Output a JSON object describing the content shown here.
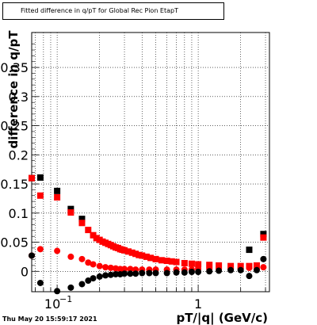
{
  "title": "Fitted difference in q/pT for Global Rec Pion EtapT",
  "xlabel": "pT/|q| (GeV/c)",
  "ylabel": "difference in q/pT",
  "footer_timestamp": "Thu May 20 15:59:17 2021",
  "chart_data": {
    "type": "scatter",
    "title": "Fitted difference in q/pT for Global Rec Pion EtapT",
    "xlabel": "pT/|q| (GeV/c)",
    "ylabel": "difference in q/pT",
    "xscale": "log",
    "xlim": [
      0.066,
      3.2
    ],
    "ylim": [
      -0.035,
      0.41
    ],
    "y_ticks": [
      0,
      0.05,
      0.1,
      0.15,
      0.2,
      0.25,
      0.3,
      0.35
    ],
    "y_tick_labels": [
      "0",
      "0.05",
      "0.1",
      "0.15",
      "0.2",
      "0.25",
      "0.3",
      "0.35"
    ],
    "x_tick_labels": [
      {
        "value": 0.1,
        "label": "10",
        "sup": "−1"
      },
      {
        "value": 1,
        "label": "1",
        "sup": ""
      }
    ],
    "grid": true,
    "series": [
      {
        "marker": "square",
        "color": "#000000",
        "x": [
          0.066,
          0.076,
          0.1,
          0.125,
          0.15,
          2.3,
          2.9
        ],
        "y": [
          0.16,
          0.161,
          0.138,
          0.107,
          0.09,
          0.037,
          0.064
        ]
      },
      {
        "marker": "square",
        "color": "#ff0000",
        "x": [
          0.066,
          0.076,
          0.1,
          0.125,
          0.15,
          0.166,
          0.18,
          0.19,
          0.2,
          0.21,
          0.22,
          0.23,
          0.24,
          0.25,
          0.26,
          0.27,
          0.28,
          0.29,
          0.3,
          0.32,
          0.34,
          0.36,
          0.38,
          0.4,
          0.43,
          0.46,
          0.5,
          0.55,
          0.6,
          0.65,
          0.7,
          0.8,
          0.9,
          1.0,
          1.2,
          1.4,
          1.7,
          2.0,
          2.3,
          2.6,
          2.9
        ],
        "y": [
          0.16,
          0.13,
          0.127,
          0.101,
          0.083,
          0.071,
          0.062,
          0.057,
          0.054,
          0.051,
          0.049,
          0.047,
          0.045,
          0.043,
          0.041,
          0.04,
          0.038,
          0.037,
          0.036,
          0.034,
          0.032,
          0.03,
          0.028,
          0.027,
          0.025,
          0.023,
          0.021,
          0.019,
          0.018,
          0.017,
          0.016,
          0.014,
          0.013,
          0.012,
          0.011,
          0.01,
          0.009,
          0.009,
          0.009,
          0.01,
          0.058
        ]
      },
      {
        "marker": "circle",
        "color": "#ff0000",
        "x": [
          0.066,
          0.076,
          0.1,
          0.125,
          0.15,
          0.166,
          0.18,
          0.2,
          0.22,
          0.24,
          0.26,
          0.28,
          0.3,
          0.33,
          0.36,
          0.4,
          0.45,
          0.5,
          0.6,
          0.7,
          0.8,
          0.9,
          1.0,
          1.2,
          1.4,
          1.7,
          2.0,
          2.3,
          2.6,
          2.9
        ],
        "y": [
          0.027,
          0.038,
          0.035,
          0.025,
          0.021,
          0.015,
          0.012,
          0.009,
          0.007,
          0.006,
          0.005,
          0.004,
          0.004,
          0.004,
          0.003,
          0.003,
          0.003,
          0.003,
          0.003,
          0.003,
          0.003,
          0.003,
          0.004,
          0.004,
          0.004,
          0.004,
          0.005,
          0.006,
          0.004,
          0.007
        ]
      },
      {
        "marker": "circle",
        "color": "#000000",
        "x": [
          0.066,
          0.076,
          0.1,
          0.125,
          0.15,
          0.166,
          0.18,
          0.2,
          0.22,
          0.24,
          0.26,
          0.28,
          0.3,
          0.33,
          0.36,
          0.4,
          0.45,
          0.5,
          0.6,
          0.7,
          0.8,
          0.9,
          1.0,
          1.2,
          1.4,
          1.7,
          2.0,
          2.3,
          2.6,
          2.9
        ],
        "y": [
          0.027,
          -0.02,
          -0.034,
          -0.028,
          -0.022,
          -0.016,
          -0.012,
          -0.009,
          -0.007,
          -0.006,
          -0.005,
          -0.005,
          -0.004,
          -0.004,
          -0.004,
          -0.003,
          -0.003,
          -0.003,
          -0.003,
          -0.002,
          -0.002,
          -0.001,
          -0.001,
          0.0,
          0.001,
          0.002,
          0.002,
          -0.008,
          0.002,
          0.021
        ]
      }
    ]
  }
}
